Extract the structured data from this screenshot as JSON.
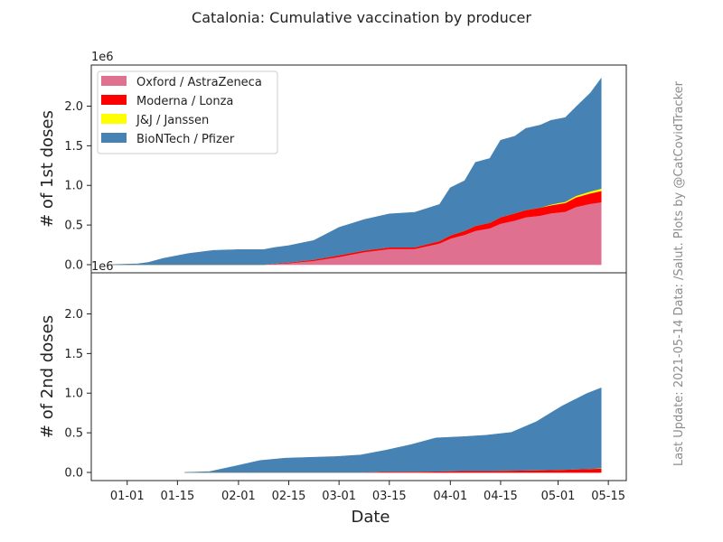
{
  "chart_data": {
    "type": "area",
    "title": "Catalonia: Cumulative vaccination by producer",
    "xlabel": "Date",
    "multiplier_label": "1e6",
    "side_text": "Last Update: 2021-05-14 Data: /Salut.    Plots by @CatCovidTracker",
    "x_ticks": [
      "01-01",
      "01-15",
      "02-01",
      "02-15",
      "03-01",
      "03-15",
      "04-01",
      "04-15",
      "05-01",
      "05-15"
    ],
    "x_range": [
      "2020-12-22",
      "2021-05-20"
    ],
    "colors": {
      "Oxford / AstraZeneca": "#df7090",
      "Moderna / Lonza": "#ff0000",
      "J&J / Janssen": "#ffff00",
      "BioNTech / Pfizer": "#4682b4"
    },
    "legend_position": "upper-left",
    "panels": [
      {
        "ylabel": "# of 1st doses",
        "ylim": [
          0,
          2.45
        ],
        "y_ticks": [
          "0.0",
          "0.5",
          "1.0",
          "1.5",
          "2.0"
        ],
        "x": [
          "2020-12-27",
          "2021-01-04",
          "2021-01-07",
          "2021-01-11",
          "2021-01-18",
          "2021-01-25",
          "2021-02-01",
          "2021-02-08",
          "2021-02-11",
          "2021-02-15",
          "2021-02-22",
          "2021-03-01",
          "2021-03-08",
          "2021-03-15",
          "2021-03-22",
          "2021-03-29",
          "2021-04-01",
          "2021-04-05",
          "2021-04-08",
          "2021-04-12",
          "2021-04-15",
          "2021-04-19",
          "2021-04-22",
          "2021-04-26",
          "2021-04-29",
          "2021-05-03",
          "2021-05-06",
          "2021-05-10",
          "2021-05-13"
        ],
        "series": [
          {
            "name": "Oxford / AstraZeneca",
            "values": [
              0,
              0,
              0,
              0,
              0,
              0,
              0,
              0,
              0.01,
              0.02,
              0.05,
              0.1,
              0.16,
              0.2,
              0.2,
              0.27,
              0.33,
              0.38,
              0.43,
              0.46,
              0.52,
              0.56,
              0.6,
              0.62,
              0.65,
              0.67,
              0.73,
              0.77,
              0.79
            ]
          },
          {
            "name": "Moderna / Lonza",
            "values": [
              0,
              0,
              0,
              0,
              0,
              0,
              0,
              0,
              0.005,
              0.01,
              0.015,
              0.02,
              0.02,
              0.02,
              0.02,
              0.03,
              0.04,
              0.05,
              0.06,
              0.07,
              0.08,
              0.09,
              0.09,
              0.1,
              0.1,
              0.11,
              0.12,
              0.13,
              0.14
            ]
          },
          {
            "name": "J&J / Janssen",
            "values": [
              0,
              0,
              0,
              0,
              0,
              0,
              0,
              0,
              0,
              0,
              0,
              0,
              0,
              0,
              0,
              0,
              0,
              0,
              0,
              0,
              0,
              0,
              0,
              0,
              0.01,
              0.015,
              0.02,
              0.025,
              0.03
            ]
          },
          {
            "name": "BioNTech / Pfizer",
            "values": [
              0,
              0.01,
              0.03,
              0.08,
              0.14,
              0.18,
              0.19,
              0.19,
              0.2,
              0.21,
              0.24,
              0.35,
              0.39,
              0.42,
              0.44,
              0.46,
              0.6,
              0.63,
              0.8,
              0.81,
              0.97,
              0.97,
              1.03,
              1.04,
              1.06,
              1.06,
              1.12,
              1.24,
              1.39
            ]
          }
        ]
      },
      {
        "ylabel": "# of 2nd doses",
        "ylim": [
          0,
          2.45
        ],
        "y_ticks": [
          "0.0",
          "0.5",
          "1.0",
          "1.5",
          "2.0"
        ],
        "x": [
          "2021-01-17",
          "2021-01-24",
          "2021-01-31",
          "2021-02-07",
          "2021-02-14",
          "2021-02-21",
          "2021-02-28",
          "2021-03-07",
          "2021-03-14",
          "2021-03-21",
          "2021-03-28",
          "2021-04-04",
          "2021-04-11",
          "2021-04-18",
          "2021-04-25",
          "2021-05-02",
          "2021-05-09",
          "2021-05-13"
        ],
        "series": [
          {
            "name": "Oxford / AstraZeneca",
            "values": [
              0,
              0,
              0,
              0,
              0,
              0,
              0,
              0,
              0,
              0,
              0,
              0,
              0,
              0,
              0,
              0,
              0,
              0
            ]
          },
          {
            "name": "Moderna / Lonza",
            "values": [
              0,
              0,
              0,
              0,
              0,
              0,
              0,
              0,
              0.01,
              0.01,
              0.015,
              0.02,
              0.02,
              0.025,
              0.03,
              0.035,
              0.045,
              0.05
            ]
          },
          {
            "name": "J&J / Janssen",
            "values": [
              0,
              0,
              0,
              0,
              0,
              0,
              0,
              0,
              0,
              0,
              0,
              0,
              0,
              0,
              0,
              0,
              0,
              0.005
            ]
          },
          {
            "name": "BioNTech / Pfizer",
            "values": [
              0,
              0.01,
              0.08,
              0.15,
              0.18,
              0.19,
              0.2,
              0.22,
              0.27,
              0.34,
              0.42,
              0.43,
              0.45,
              0.48,
              0.61,
              0.8,
              0.95,
              1.01
            ]
          }
        ]
      }
    ]
  }
}
